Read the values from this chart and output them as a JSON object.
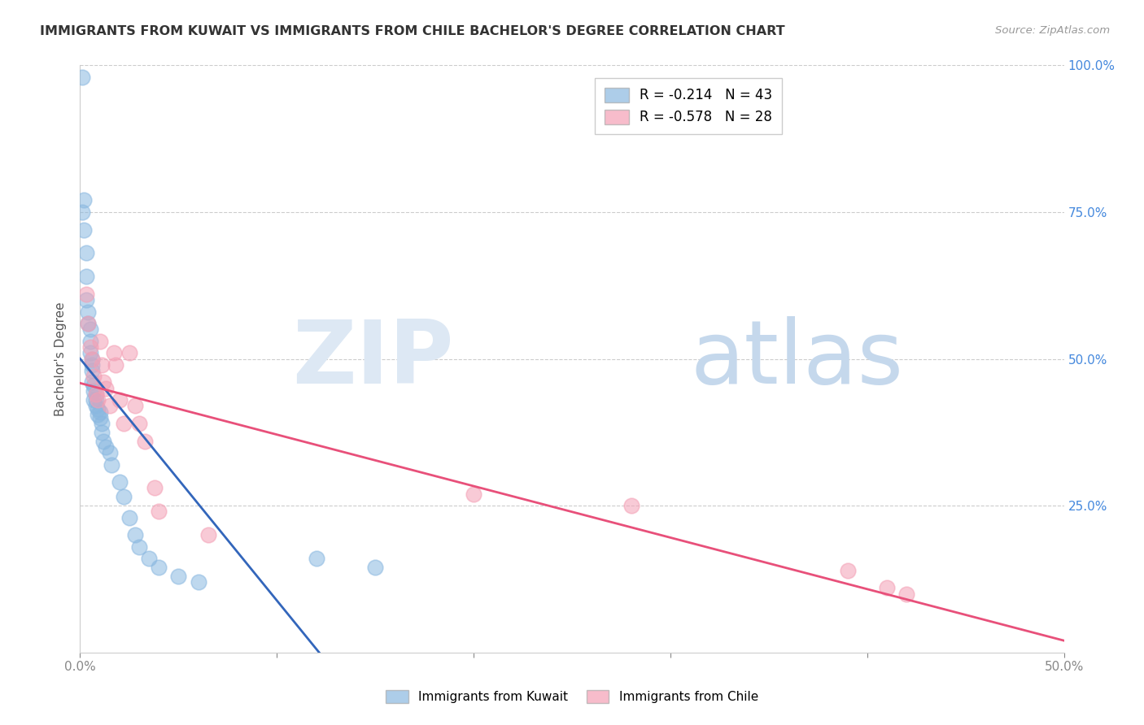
{
  "title": "IMMIGRANTS FROM KUWAIT VS IMMIGRANTS FROM CHILE BACHELOR'S DEGREE CORRELATION CHART",
  "source": "Source: ZipAtlas.com",
  "ylabel": "Bachelor's Degree",
  "kuwait_R": -0.214,
  "kuwait_N": 43,
  "chile_R": -0.578,
  "chile_N": 28,
  "kuwait_color": "#8ab8e0",
  "chile_color": "#f4a0b5",
  "kuwait_line_color": "#3366bb",
  "chile_line_color": "#e8507a",
  "trend_dash_color": "#b8cfe8",
  "xlim": [
    0.0,
    0.5
  ],
  "ylim": [
    0.0,
    1.0
  ],
  "xticks": [
    0.0,
    0.1,
    0.2,
    0.3,
    0.4,
    0.5
  ],
  "yticks_right": [
    0.0,
    0.25,
    0.5,
    0.75,
    1.0
  ],
  "kuwait_x": [
    0.001,
    0.001,
    0.002,
    0.002,
    0.003,
    0.003,
    0.003,
    0.004,
    0.004,
    0.005,
    0.005,
    0.005,
    0.006,
    0.006,
    0.006,
    0.006,
    0.007,
    0.007,
    0.007,
    0.008,
    0.008,
    0.008,
    0.009,
    0.009,
    0.01,
    0.01,
    0.011,
    0.011,
    0.012,
    0.013,
    0.015,
    0.016,
    0.02,
    0.022,
    0.025,
    0.028,
    0.03,
    0.035,
    0.04,
    0.05,
    0.06,
    0.12,
    0.15
  ],
  "kuwait_y": [
    0.98,
    0.75,
    0.77,
    0.72,
    0.68,
    0.64,
    0.6,
    0.58,
    0.56,
    0.55,
    0.53,
    0.51,
    0.5,
    0.49,
    0.48,
    0.46,
    0.455,
    0.445,
    0.43,
    0.44,
    0.43,
    0.42,
    0.415,
    0.405,
    0.41,
    0.4,
    0.39,
    0.375,
    0.36,
    0.35,
    0.34,
    0.32,
    0.29,
    0.265,
    0.23,
    0.2,
    0.18,
    0.16,
    0.145,
    0.13,
    0.12,
    0.16,
    0.145
  ],
  "chile_x": [
    0.003,
    0.004,
    0.005,
    0.006,
    0.007,
    0.008,
    0.009,
    0.01,
    0.011,
    0.012,
    0.013,
    0.015,
    0.017,
    0.018,
    0.02,
    0.022,
    0.025,
    0.028,
    0.03,
    0.033,
    0.038,
    0.04,
    0.065,
    0.2,
    0.28,
    0.39,
    0.41,
    0.42
  ],
  "chile_y": [
    0.61,
    0.56,
    0.52,
    0.5,
    0.47,
    0.44,
    0.43,
    0.53,
    0.49,
    0.46,
    0.45,
    0.42,
    0.51,
    0.49,
    0.43,
    0.39,
    0.51,
    0.42,
    0.39,
    0.36,
    0.28,
    0.24,
    0.2,
    0.27,
    0.25,
    0.14,
    0.11,
    0.1
  ]
}
